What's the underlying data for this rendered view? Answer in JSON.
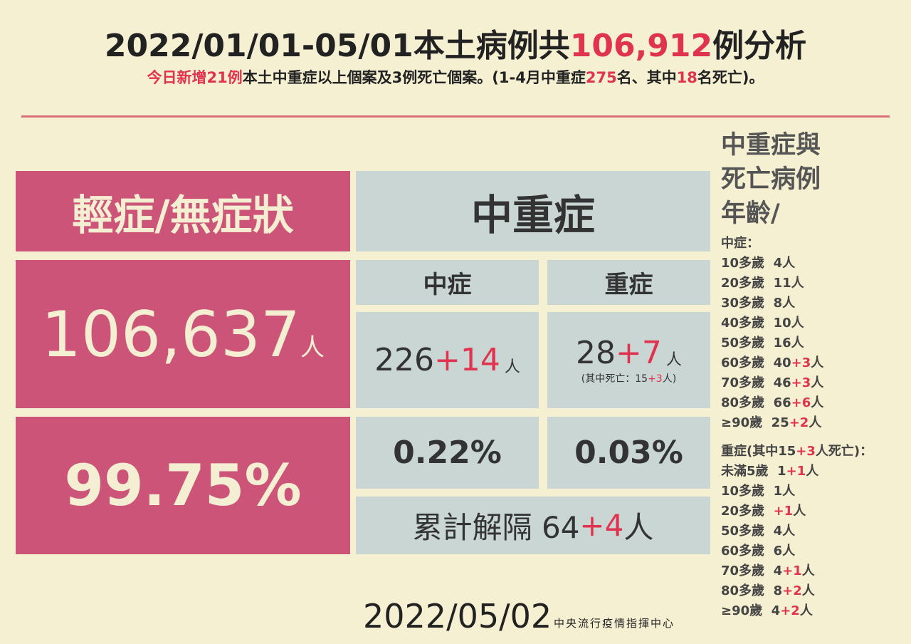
{
  "header": {
    "title": {
      "before": "2022/01/01-05/01本土病例共",
      "highlight": "106,912",
      "after": "例分析"
    },
    "subtitle": {
      "today": "今日新增21例",
      "text1": "本土中重症以上個案及3例死亡個案。(1-4月中重症",
      "n1": "275",
      "text2": "名、其中",
      "n2": "18",
      "text3": "名死亡)。"
    }
  },
  "mild": {
    "label": "輕症/無症狀",
    "count": "106,637",
    "unit": "人",
    "percent": "99.75%"
  },
  "severe": {
    "label": "中重症",
    "moderate": {
      "label": "中症",
      "count": "226",
      "added": "+14",
      "unit": "人",
      "percent": "0.22%"
    },
    "critical": {
      "label": "重症",
      "count": "28",
      "added": "+7",
      "unit": "人",
      "deaths": {
        "before": "(其中死亡：15",
        "added": "+3",
        "after": "人)"
      },
      "percent": "0.03%"
    },
    "released": {
      "before": "累計解隔 64",
      "added": "+4",
      "unit": "人"
    }
  },
  "ages": {
    "heading": [
      "中重症與",
      "死亡病例",
      "年齡/"
    ],
    "moderate": {
      "label": "中症：",
      "rows": [
        {
          "text": "10多歲  4人"
        },
        {
          "text": "20多歲  11人"
        },
        {
          "text": "30多歲  8人"
        },
        {
          "text": "40多歲  10人"
        },
        {
          "text": "50多歲  16人"
        },
        {
          "text": "60多歲  40",
          "added": "+3",
          "unit": "人"
        },
        {
          "text": "70多歲  46",
          "added": "+3",
          "unit": "人"
        },
        {
          "text": "80多歲  66",
          "added": "+6",
          "unit": "人"
        },
        {
          "text": "≥90歲  25",
          "added": "+2",
          "unit": "人"
        }
      ]
    },
    "critical": {
      "label": {
        "before": "重症(其中15",
        "added": "+3",
        "after": "人死亡)："
      },
      "rows": [
        {
          "text": "未滿5歲  1",
          "added": "+1",
          "unit": "人"
        },
        {
          "text": "10多歲  1人"
        },
        {
          "text": "20多歲  ",
          "added": "+1",
          "unit": "人"
        },
        {
          "text": "50多歲  4人"
        },
        {
          "text": "60多歲  6人"
        },
        {
          "text": "70多歲  4",
          "added": "+1",
          "unit": "人"
        },
        {
          "text": "80多歲  8",
          "added": "+2",
          "unit": "人"
        },
        {
          "text": "≥90歲  4",
          "added": "+2",
          "unit": "人"
        }
      ]
    }
  },
  "footer": {
    "date": "2022/05/02",
    "org": "中央流行疫情指揮中心"
  }
}
